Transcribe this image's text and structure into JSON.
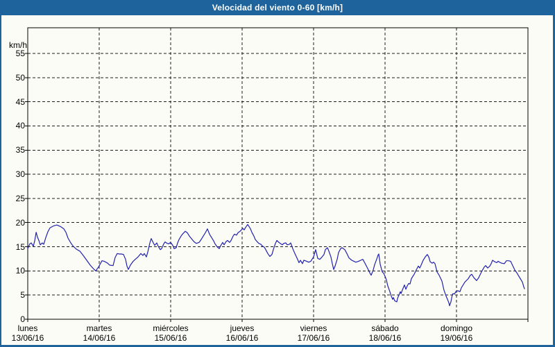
{
  "window": {
    "title_bar": "Velocidad del viento 0-60 [km/h]"
  },
  "colors": {
    "frame_blue": "#1e639c",
    "title_text": "#ffffff",
    "plot_background": "#fcfcf6",
    "grid_color": "#1c1c1c",
    "line_color": "#2121af"
  },
  "chart_data": {
    "type": "line",
    "title": "Velocidad del viento 0-60 [km/h]",
    "ylabel": "km/h",
    "ylim": [
      0,
      60.3
    ],
    "grid": "dashed",
    "legend": "none",
    "y_ticks": [
      0,
      5,
      10,
      15,
      20,
      25,
      30,
      35,
      40,
      45,
      50,
      55
    ],
    "x_days": [
      {
        "name": "lunes",
        "date": "13/06/16"
      },
      {
        "name": "martes",
        "date": "14/06/16"
      },
      {
        "name": "miércoles",
        "date": "15/06/16"
      },
      {
        "name": "jueves",
        "date": "16/06/16"
      },
      {
        "name": "viernes",
        "date": "17/06/16"
      },
      {
        "name": "sábado",
        "date": "18/06/16"
      },
      {
        "name": "domingo",
        "date": "19/06/16"
      }
    ],
    "x_unit": "days_since_2016-06-13",
    "series": [
      {
        "name": "velocidad-del-viento",
        "unit": "km/h",
        "points": [
          [
            0.0,
            14.6
          ],
          [
            0.029,
            15.6
          ],
          [
            0.049,
            15.8
          ],
          [
            0.078,
            15.1
          ],
          [
            0.097,
            16.2
          ],
          [
            0.117,
            18.0
          ],
          [
            0.136,
            17.0
          ],
          [
            0.155,
            16.3
          ],
          [
            0.175,
            15.4
          ],
          [
            0.204,
            15.8
          ],
          [
            0.223,
            15.5
          ],
          [
            0.252,
            16.9
          ],
          [
            0.282,
            18.1
          ],
          [
            0.311,
            18.9
          ],
          [
            0.359,
            19.3
          ],
          [
            0.408,
            19.5
          ],
          [
            0.456,
            19.2
          ],
          [
            0.505,
            18.7
          ],
          [
            0.534,
            18.0
          ],
          [
            0.563,
            16.8
          ],
          [
            0.602,
            15.8
          ],
          [
            0.631,
            15.2
          ],
          [
            0.68,
            14.5
          ],
          [
            0.728,
            14.1
          ],
          [
            0.777,
            13.2
          ],
          [
            0.825,
            12.2
          ],
          [
            0.874,
            11.2
          ],
          [
            0.922,
            10.4
          ],
          [
            0.951,
            10.0
          ],
          [
            0.99,
            10.8
          ],
          [
            1.039,
            12.1
          ],
          [
            1.068,
            12.0
          ],
          [
            1.117,
            11.6
          ],
          [
            1.146,
            11.2
          ],
          [
            1.194,
            11.1
          ],
          [
            1.223,
            12.8
          ],
          [
            1.252,
            13.6
          ],
          [
            1.282,
            13.5
          ],
          [
            1.311,
            13.5
          ],
          [
            1.34,
            13.4
          ],
          [
            1.369,
            12.4
          ],
          [
            1.388,
            11.0
          ],
          [
            1.408,
            10.3
          ],
          [
            1.437,
            11.2
          ],
          [
            1.476,
            12.0
          ],
          [
            1.505,
            12.4
          ],
          [
            1.544,
            12.9
          ],
          [
            1.583,
            13.6
          ],
          [
            1.612,
            13.2
          ],
          [
            1.631,
            13.6
          ],
          [
            1.66,
            12.9
          ],
          [
            1.68,
            13.9
          ],
          [
            1.709,
            15.8
          ],
          [
            1.728,
            16.7
          ],
          [
            1.757,
            15.8
          ],
          [
            1.777,
            15.3
          ],
          [
            1.806,
            15.8
          ],
          [
            1.825,
            15.1
          ],
          [
            1.854,
            14.4
          ],
          [
            1.874,
            14.6
          ],
          [
            1.903,
            15.6
          ],
          [
            1.922,
            16.0
          ],
          [
            1.951,
            15.7
          ],
          [
            1.971,
            15.6
          ],
          [
            2.0,
            15.9
          ],
          [
            2.029,
            15.3
          ],
          [
            2.049,
            14.6
          ],
          [
            2.078,
            14.8
          ],
          [
            2.097,
            15.8
          ],
          [
            2.117,
            16.5
          ],
          [
            2.146,
            17.2
          ],
          [
            2.165,
            17.6
          ],
          [
            2.204,
            18.2
          ],
          [
            2.233,
            17.9
          ],
          [
            2.262,
            17.2
          ],
          [
            2.301,
            16.5
          ],
          [
            2.33,
            16.0
          ],
          [
            2.359,
            15.7
          ],
          [
            2.398,
            15.9
          ],
          [
            2.427,
            16.5
          ],
          [
            2.456,
            17.2
          ],
          [
            2.485,
            17.9
          ],
          [
            2.515,
            18.7
          ],
          [
            2.544,
            17.6
          ],
          [
            2.573,
            16.9
          ],
          [
            2.602,
            16.2
          ],
          [
            2.621,
            15.6
          ],
          [
            2.65,
            15.0
          ],
          [
            2.68,
            14.6
          ],
          [
            2.699,
            15.2
          ],
          [
            2.728,
            15.9
          ],
          [
            2.748,
            15.4
          ],
          [
            2.777,
            16.1
          ],
          [
            2.796,
            16.3
          ],
          [
            2.825,
            15.9
          ],
          [
            2.845,
            16.3
          ],
          [
            2.874,
            17.2
          ],
          [
            2.893,
            17.6
          ],
          [
            2.922,
            17.4
          ],
          [
            2.942,
            17.9
          ],
          [
            2.971,
            18.2
          ],
          [
            2.99,
            18.5
          ],
          [
            3.01,
            18.8
          ],
          [
            3.029,
            18.5
          ],
          [
            3.049,
            19.0
          ],
          [
            3.078,
            19.6
          ],
          [
            3.087,
            19.4
          ],
          [
            3.117,
            18.7
          ],
          [
            3.136,
            18.0
          ],
          [
            3.165,
            17.2
          ],
          [
            3.184,
            16.5
          ],
          [
            3.214,
            16.0
          ],
          [
            3.233,
            15.7
          ],
          [
            3.262,
            15.5
          ],
          [
            3.282,
            15.2
          ],
          [
            3.311,
            14.9
          ],
          [
            3.33,
            14.4
          ],
          [
            3.359,
            13.6
          ],
          [
            3.388,
            13.0
          ],
          [
            3.417,
            13.4
          ],
          [
            3.437,
            14.4
          ],
          [
            3.466,
            15.7
          ],
          [
            3.485,
            16.3
          ],
          [
            3.515,
            15.9
          ],
          [
            3.534,
            15.7
          ],
          [
            3.563,
            15.4
          ],
          [
            3.583,
            15.7
          ],
          [
            3.612,
            15.8
          ],
          [
            3.631,
            15.4
          ],
          [
            3.66,
            15.5
          ],
          [
            3.68,
            15.8
          ],
          [
            3.709,
            14.6
          ],
          [
            3.738,
            13.6
          ],
          [
            3.767,
            12.7
          ],
          [
            3.796,
            11.7
          ],
          [
            3.816,
            12.2
          ],
          [
            3.845,
            11.5
          ],
          [
            3.864,
            12.2
          ],
          [
            3.903,
            12.0
          ],
          [
            3.932,
            11.8
          ],
          [
            3.961,
            12.0
          ],
          [
            4.0,
            12.9
          ],
          [
            4.029,
            14.4
          ],
          [
            4.058,
            12.6
          ],
          [
            4.087,
            12.4
          ],
          [
            4.107,
            12.7
          ],
          [
            4.146,
            13.4
          ],
          [
            4.165,
            14.4
          ],
          [
            4.194,
            14.8
          ],
          [
            4.214,
            14.1
          ],
          [
            4.243,
            12.9
          ],
          [
            4.262,
            11.5
          ],
          [
            4.282,
            10.3
          ],
          [
            4.301,
            11.0
          ],
          [
            4.33,
            12.4
          ],
          [
            4.35,
            13.8
          ],
          [
            4.379,
            14.6
          ],
          [
            4.398,
            14.8
          ],
          [
            4.437,
            14.4
          ],
          [
            4.466,
            13.6
          ],
          [
            4.495,
            12.7
          ],
          [
            4.534,
            12.2
          ],
          [
            4.563,
            12.0
          ],
          [
            4.592,
            11.8
          ],
          [
            4.631,
            12.0
          ],
          [
            4.66,
            12.2
          ],
          [
            4.689,
            12.4
          ],
          [
            4.718,
            11.6
          ],
          [
            4.757,
            10.5
          ],
          [
            4.786,
            9.6
          ],
          [
            4.806,
            9.1
          ],
          [
            4.835,
            10.2
          ],
          [
            4.854,
            11.3
          ],
          [
            4.883,
            12.4
          ],
          [
            4.903,
            13.3
          ],
          [
            4.913,
            13.5
          ],
          [
            4.932,
            11.4
          ],
          [
            4.961,
            9.8
          ],
          [
            4.981,
            9.5
          ],
          [
            5.0,
            8.9
          ],
          [
            5.019,
            8.1
          ],
          [
            5.039,
            6.9
          ],
          [
            5.068,
            5.7
          ],
          [
            5.087,
            4.8
          ],
          [
            5.107,
            4.1
          ],
          [
            5.117,
            4.5
          ],
          [
            5.136,
            3.8
          ],
          [
            5.165,
            3.6
          ],
          [
            5.175,
            4.3
          ],
          [
            5.194,
            5.0
          ],
          [
            5.214,
            5.7
          ],
          [
            5.223,
            5.3
          ],
          [
            5.252,
            6.4
          ],
          [
            5.272,
            7.1
          ],
          [
            5.291,
            6.2
          ],
          [
            5.311,
            6.9
          ],
          [
            5.33,
            7.4
          ],
          [
            5.35,
            7.3
          ],
          [
            5.369,
            8.4
          ],
          [
            5.408,
            9.3
          ],
          [
            5.437,
            10.2
          ],
          [
            5.466,
            11.0
          ],
          [
            5.485,
            10.6
          ],
          [
            5.505,
            11.2
          ],
          [
            5.534,
            12.2
          ],
          [
            5.563,
            12.9
          ],
          [
            5.592,
            13.4
          ],
          [
            5.612,
            12.9
          ],
          [
            5.631,
            11.9
          ],
          [
            5.66,
            11.6
          ],
          [
            5.68,
            11.8
          ],
          [
            5.699,
            11.5
          ],
          [
            5.728,
            9.8
          ],
          [
            5.757,
            9.1
          ],
          [
            5.796,
            7.9
          ],
          [
            5.825,
            6.0
          ],
          [
            5.854,
            4.8
          ],
          [
            5.874,
            4.1
          ],
          [
            5.893,
            3.4
          ],
          [
            5.903,
            2.8
          ],
          [
            5.922,
            3.6
          ],
          [
            5.942,
            5.1
          ],
          [
            5.951,
            5.3
          ],
          [
            5.971,
            5.2
          ],
          [
            5.99,
            5.7
          ],
          [
            6.019,
            5.9
          ],
          [
            6.049,
            5.7
          ],
          [
            6.068,
            6.5
          ],
          [
            6.117,
            7.7
          ],
          [
            6.165,
            8.4
          ],
          [
            6.194,
            9.1
          ],
          [
            6.214,
            9.3
          ],
          [
            6.243,
            8.6
          ],
          [
            6.282,
            8.0
          ],
          [
            6.311,
            8.6
          ],
          [
            6.35,
            9.8
          ],
          [
            6.388,
            10.8
          ],
          [
            6.408,
            11.1
          ],
          [
            6.437,
            10.6
          ],
          [
            6.466,
            11.0
          ],
          [
            6.485,
            11.5
          ],
          [
            6.505,
            12.2
          ],
          [
            6.534,
            11.9
          ],
          [
            6.563,
            11.7
          ],
          [
            6.583,
            12.0
          ],
          [
            6.602,
            11.8
          ],
          [
            6.631,
            11.6
          ],
          [
            6.67,
            11.5
          ],
          [
            6.699,
            12.1
          ],
          [
            6.728,
            12.1
          ],
          [
            6.757,
            12.0
          ],
          [
            6.777,
            11.4
          ],
          [
            6.816,
            10.2
          ],
          [
            6.845,
            9.6
          ],
          [
            6.864,
            9.1
          ],
          [
            6.893,
            8.4
          ],
          [
            6.922,
            7.7
          ],
          [
            6.942,
            6.7
          ],
          [
            6.951,
            6.3
          ]
        ]
      }
    ]
  }
}
